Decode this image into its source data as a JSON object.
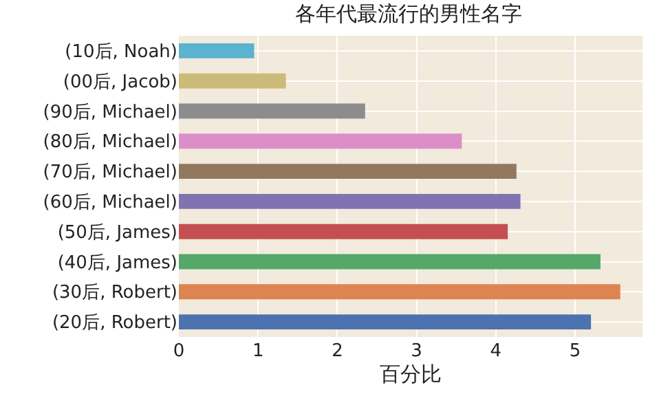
{
  "chart_data": {
    "type": "bar",
    "orientation": "horizontal",
    "title": "各年代最流行的男性名字",
    "xlabel": "百分比",
    "categories": [
      "(10后, Noah)",
      "(00后, Jacob)",
      "(90后, Michael)",
      "(80后, Michael)",
      "(70后, Michael)",
      "(60后, Michael)",
      "(50后, James)",
      "(40后, James)",
      "(30后, Robert)",
      "(20后, Robert)"
    ],
    "values": [
      0.95,
      1.35,
      2.35,
      3.57,
      4.26,
      4.31,
      4.15,
      5.32,
      5.57,
      5.2
    ],
    "colors": [
      "#5ab3cf",
      "#ccba78",
      "#8c8c8c",
      "#dc8ec8",
      "#937860",
      "#8172b2",
      "#c44e52",
      "#55a868",
      "#dd8452",
      "#4c72b0"
    ],
    "xlim": [
      0,
      5.85
    ],
    "xticks": [
      0,
      1,
      2,
      3,
      4,
      5
    ],
    "grid": true
  }
}
